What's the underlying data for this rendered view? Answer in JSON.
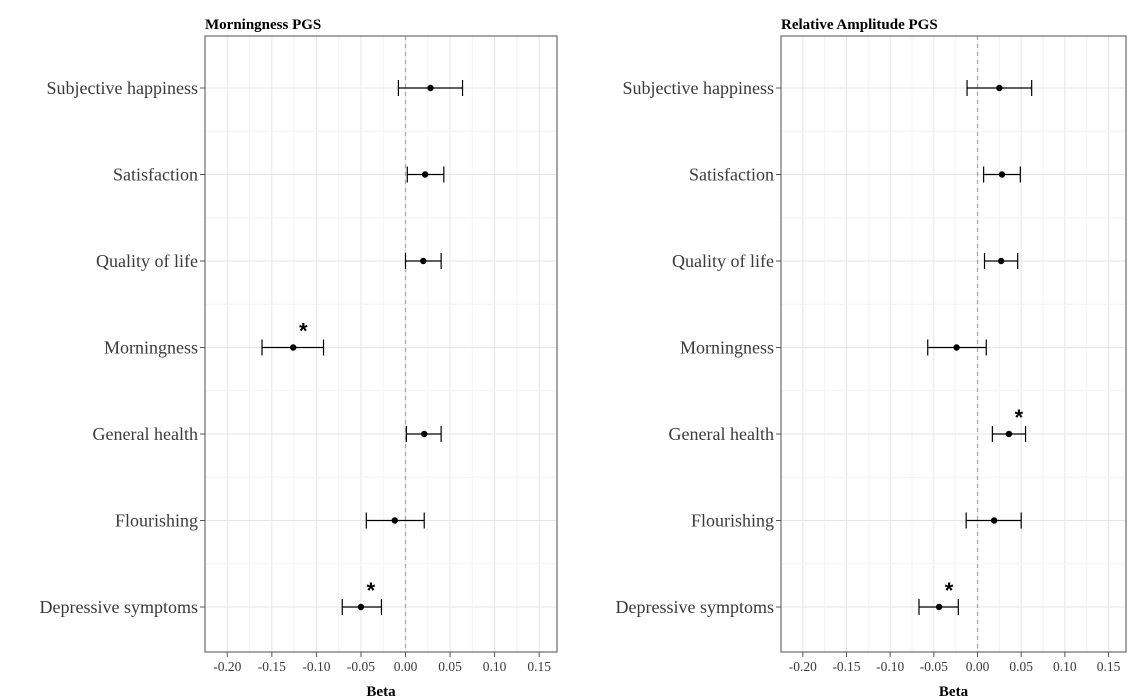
{
  "chart_data": [
    {
      "type": "forest",
      "title": "Morningness PGS",
      "xlabel": "Beta",
      "xlim": [
        -0.225,
        0.17
      ],
      "xticks": [
        -0.2,
        -0.15,
        -0.1,
        -0.05,
        0.0,
        0.05,
        0.1,
        0.15
      ],
      "xtick_labels": [
        "-0.20",
        "-0.15",
        "-0.10",
        "-0.05",
        "0.00",
        "0.05",
        "0.10",
        "0.15"
      ],
      "reference_line": 0,
      "grid": true,
      "categories": [
        "Subjective happiness",
        "Satisfaction",
        "Quality of life",
        "Morningness",
        "General health",
        "Flourishing",
        "Depressive symptoms"
      ],
      "estimates": [
        0.028,
        0.022,
        0.02,
        -0.126,
        0.021,
        -0.012,
        -0.05
      ],
      "ci_low": [
        -0.008,
        0.002,
        0.0,
        -0.161,
        0.001,
        -0.044,
        -0.071
      ],
      "ci_high": [
        0.064,
        0.043,
        0.04,
        -0.092,
        0.04,
        0.021,
        -0.027
      ],
      "significance": [
        "",
        "",
        "",
        "*",
        "",
        "",
        "*"
      ]
    },
    {
      "type": "forest",
      "title": "Relative Amplitude PGS",
      "xlabel": "Beta",
      "xlim": [
        -0.225,
        0.17
      ],
      "xticks": [
        -0.2,
        -0.15,
        -0.1,
        -0.05,
        0.0,
        0.05,
        0.1,
        0.15
      ],
      "xtick_labels": [
        "-0.20",
        "-0.15",
        "-0.10",
        "-0.05",
        "0.00",
        "0.05",
        "0.10",
        "0.15"
      ],
      "reference_line": 0,
      "grid": true,
      "categories": [
        "Subjective happiness",
        "Satisfaction",
        "Quality of life",
        "Morningness",
        "General health",
        "Flourishing",
        "Depressive symptoms"
      ],
      "estimates": [
        0.025,
        0.028,
        0.027,
        -0.024,
        0.036,
        0.019,
        -0.044
      ],
      "ci_low": [
        -0.012,
        0.007,
        0.008,
        -0.057,
        0.017,
        -0.013,
        -0.067
      ],
      "ci_high": [
        0.062,
        0.049,
        0.046,
        0.01,
        0.055,
        0.05,
        -0.022
      ],
      "significance": [
        "",
        "",
        "",
        "",
        "*",
        "",
        "*"
      ]
    }
  ]
}
